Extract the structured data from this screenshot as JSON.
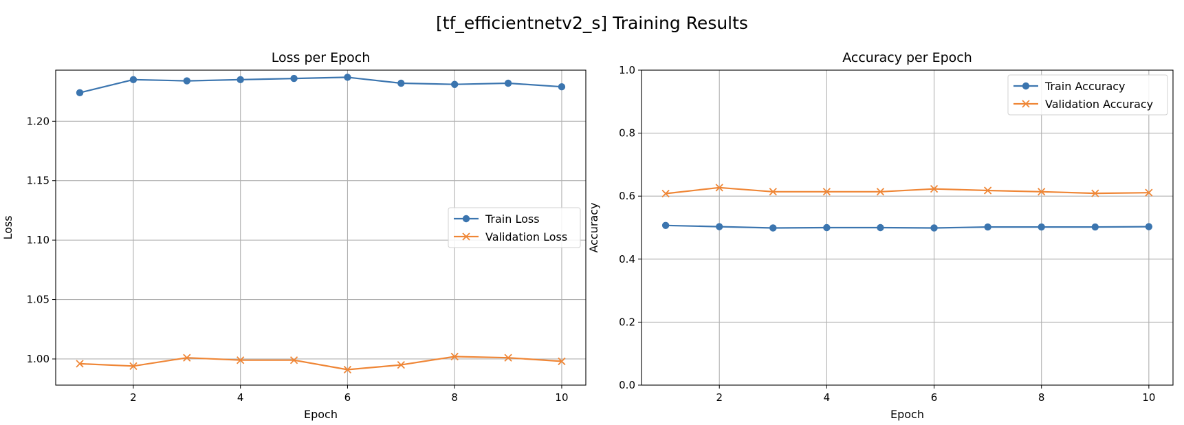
{
  "figure": {
    "title": "[tf_efficientnetv2_s] Training Results"
  },
  "colors": {
    "train": "#3b75af",
    "validation": "#ef8636",
    "grid": "#b0b0b0"
  },
  "chart_data": [
    {
      "type": "line",
      "title": "Loss per Epoch",
      "xlabel": "Epoch",
      "ylabel": "Loss",
      "xlim": [
        0.55,
        10.45
      ],
      "ylim": [
        0.978,
        1.243
      ],
      "xticks": [
        2,
        4,
        6,
        8,
        10
      ],
      "yticks": [
        1.0,
        1.05,
        1.1,
        1.15,
        1.2
      ],
      "ytick_labels": [
        "1.00",
        "1.05",
        "1.10",
        "1.15",
        "1.20"
      ],
      "grid": true,
      "legend_position": "center-right",
      "x": [
        1,
        2,
        3,
        4,
        5,
        6,
        7,
        8,
        9,
        10
      ],
      "series": [
        {
          "name": "Train Loss",
          "marker": "circle",
          "values": [
            1.224,
            1.235,
            1.234,
            1.235,
            1.236,
            1.237,
            1.232,
            1.231,
            1.232,
            1.229
          ]
        },
        {
          "name": "Validation Loss",
          "marker": "x",
          "values": [
            0.996,
            0.994,
            1.001,
            0.999,
            0.999,
            0.991,
            0.995,
            1.002,
            1.001,
            0.998
          ]
        }
      ]
    },
    {
      "type": "line",
      "title": "Accuracy per Epoch",
      "xlabel": "Epoch",
      "ylabel": "Accuracy",
      "xlim": [
        0.55,
        10.45
      ],
      "ylim": [
        0.0,
        1.0
      ],
      "xticks": [
        2,
        4,
        6,
        8,
        10
      ],
      "yticks": [
        0.0,
        0.2,
        0.4,
        0.6,
        0.8,
        1.0
      ],
      "ytick_labels": [
        "0.0",
        "0.2",
        "0.4",
        "0.6",
        "0.8",
        "1.0"
      ],
      "grid": true,
      "legend_position": "upper-right",
      "x": [
        1,
        2,
        3,
        4,
        5,
        6,
        7,
        8,
        9,
        10
      ],
      "series": [
        {
          "name": "Train Accuracy",
          "marker": "circle",
          "values": [
            0.507,
            0.503,
            0.499,
            0.5,
            0.5,
            0.499,
            0.502,
            0.502,
            0.502,
            0.503
          ]
        },
        {
          "name": "Validation Accuracy",
          "marker": "x",
          "values": [
            0.608,
            0.627,
            0.614,
            0.614,
            0.614,
            0.623,
            0.618,
            0.614,
            0.609,
            0.611
          ]
        }
      ]
    }
  ]
}
